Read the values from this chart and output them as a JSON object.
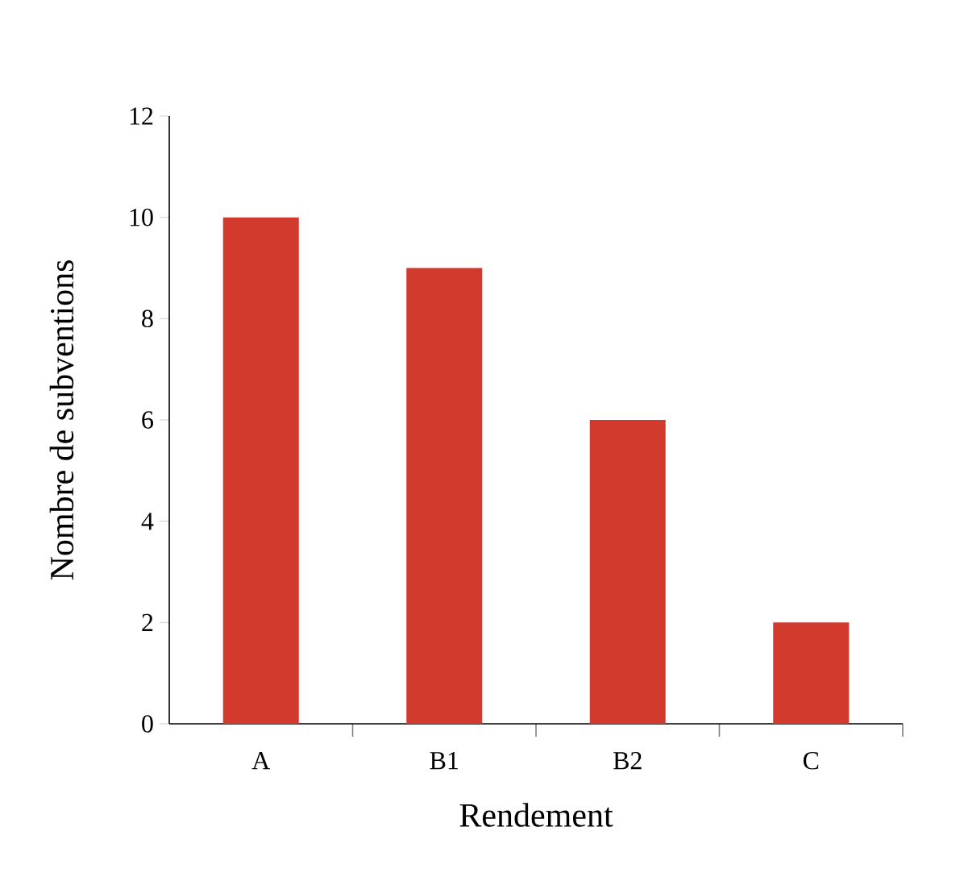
{
  "chart_data": {
    "type": "bar",
    "xlabel": "Rendement",
    "ylabel": "Nombre de subventions",
    "categories": [
      "A",
      "B1",
      "B2",
      "C"
    ],
    "values": [
      10,
      9,
      6,
      2
    ],
    "color": "#d13a2c",
    "ylim": [
      0,
      12
    ],
    "yticks": [
      0,
      2,
      4,
      6,
      8,
      10,
      12
    ],
    "grid": false
  }
}
